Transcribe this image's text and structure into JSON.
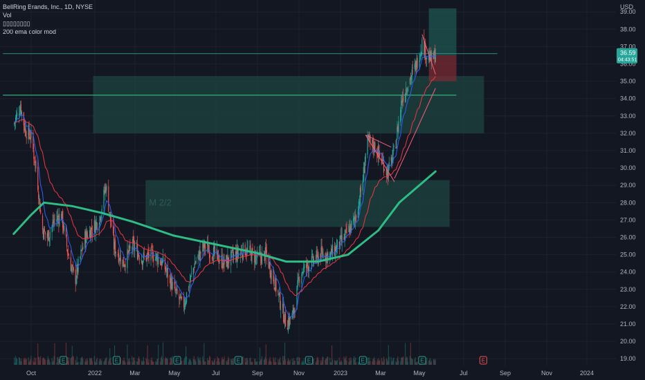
{
  "chart_data": {
    "type": "candlestick",
    "symbol": "BellRing Brands, Inc., 1D, NYSE",
    "currency": "USD",
    "indicators": [
      "Vol",
      "▯▯▯▯▯▯▯▯",
      "200 ema color mod"
    ],
    "last_price": "36.59",
    "countdown": "04:43:51",
    "price_axis": [
      "39.00",
      "38.00",
      "37.00",
      "36.00",
      "35.00",
      "34.00",
      "33.00",
      "32.00",
      "31.00",
      "30.00",
      "29.00",
      "28.00",
      "27.00",
      "26.00",
      "25.00",
      "24.00",
      "23.00",
      "22.00",
      "21.00",
      "20.00",
      "19.00"
    ],
    "ylim": [
      18.8,
      39.2
    ],
    "time_axis": [
      "Oct",
      "2022",
      "Mar",
      "May",
      "Jul",
      "Sep",
      "Nov",
      "2023",
      "Mar",
      "May",
      "Jul",
      "Sep",
      "Nov",
      "2024"
    ],
    "zone_label": "M 2/2",
    "close_points": [
      {
        "d": "2021-09-05",
        "v": 32.5
      },
      {
        "d": "2021-09-15",
        "v": 33.6
      },
      {
        "d": "2021-09-22",
        "v": 32.2
      },
      {
        "d": "2021-10-01",
        "v": 31.8
      },
      {
        "d": "2021-10-10",
        "v": 29.5
      },
      {
        "d": "2021-10-17",
        "v": 26.5
      },
      {
        "d": "2021-10-25",
        "v": 26.0
      },
      {
        "d": "2021-11-05",
        "v": 27.0
      },
      {
        "d": "2021-11-15",
        "v": 27.3
      },
      {
        "d": "2021-11-25",
        "v": 25.0
      },
      {
        "d": "2021-12-05",
        "v": 23.5
      },
      {
        "d": "2021-12-20",
        "v": 26.0
      },
      {
        "d": "2022-01-10",
        "v": 27.0
      },
      {
        "d": "2022-01-20",
        "v": 29.0
      },
      {
        "d": "2022-02-01",
        "v": 25.5
      },
      {
        "d": "2022-02-15",
        "v": 24.5
      },
      {
        "d": "2022-03-01",
        "v": 25.5
      },
      {
        "d": "2022-03-15",
        "v": 24.8
      },
      {
        "d": "2022-04-01",
        "v": 25.0
      },
      {
        "d": "2022-04-15",
        "v": 24.5
      },
      {
        "d": "2022-05-01",
        "v": 23.0
      },
      {
        "d": "2022-05-15",
        "v": 22.0
      },
      {
        "d": "2022-06-01",
        "v": 24.5
      },
      {
        "d": "2022-06-15",
        "v": 25.5
      },
      {
        "d": "2022-07-01",
        "v": 25.0
      },
      {
        "d": "2022-07-15",
        "v": 24.5
      },
      {
        "d": "2022-08-01",
        "v": 25.0
      },
      {
        "d": "2022-08-15",
        "v": 25.3
      },
      {
        "d": "2022-09-01",
        "v": 24.8
      },
      {
        "d": "2022-09-15",
        "v": 25.0
      },
      {
        "d": "2022-10-01",
        "v": 23.0
      },
      {
        "d": "2022-10-15",
        "v": 21.0
      },
      {
        "d": "2022-10-25",
        "v": 21.5
      },
      {
        "d": "2022-11-05",
        "v": 24.0
      },
      {
        "d": "2022-11-20",
        "v": 24.5
      },
      {
        "d": "2022-12-05",
        "v": 25.0
      },
      {
        "d": "2022-12-20",
        "v": 25.0
      },
      {
        "d": "2023-01-10",
        "v": 26.0
      },
      {
        "d": "2023-01-25",
        "v": 27.0
      },
      {
        "d": "2023-02-05",
        "v": 29.0
      },
      {
        "d": "2023-02-12",
        "v": 31.5
      },
      {
        "d": "2023-02-25",
        "v": 31.2
      },
      {
        "d": "2023-03-05",
        "v": 30.5
      },
      {
        "d": "2023-03-15",
        "v": 29.7
      },
      {
        "d": "2023-03-25",
        "v": 31.0
      },
      {
        "d": "2023-04-05",
        "v": 34.0
      },
      {
        "d": "2023-04-15",
        "v": 35.0
      },
      {
        "d": "2023-04-25",
        "v": 35.8
      },
      {
        "d": "2023-05-05",
        "v": 37.2
      },
      {
        "d": "2023-05-12",
        "v": 36.5
      },
      {
        "d": "2023-05-20",
        "v": 36.2
      },
      {
        "d": "2023-05-25",
        "v": 36.59
      }
    ],
    "ema_200": [
      {
        "d": "2021-09-05",
        "v": 26.2
      },
      {
        "d": "2021-10-01",
        "v": 27.3
      },
      {
        "d": "2021-10-20",
        "v": 28.0
      },
      {
        "d": "2021-12-01",
        "v": 27.8
      },
      {
        "d": "2022-01-15",
        "v": 27.4
      },
      {
        "d": "2022-03-01",
        "v": 26.9
      },
      {
        "d": "2022-05-01",
        "v": 26.1
      },
      {
        "d": "2022-07-01",
        "v": 25.6
      },
      {
        "d": "2022-09-01",
        "v": 25.1
      },
      {
        "d": "2022-10-15",
        "v": 24.6
      },
      {
        "d": "2022-12-01",
        "v": 24.6
      },
      {
        "d": "2023-01-15",
        "v": 25.0
      },
      {
        "d": "2023-03-01",
        "v": 26.4
      },
      {
        "d": "2023-04-01",
        "v": 28.0
      },
      {
        "d": "2023-05-25",
        "v": 29.8
      }
    ],
    "zones": [
      {
        "name": "upper-supply-zone",
        "x0": "2022-01-01",
        "x1": "2023-08-05",
        "y0": 32.0,
        "y1": 35.3
      },
      {
        "name": "lower-demand-zone",
        "x0": "2022-03-20",
        "x1": "2023-06-15",
        "y0": 26.6,
        "y1": 29.3
      }
    ],
    "horizontal_lines": [
      {
        "name": "resistance-line",
        "y": 34.2,
        "x0": "2021-08-20",
        "x1": "2023-06-25",
        "color": "#2ebd85"
      },
      {
        "name": "last-price-line",
        "y": 36.59,
        "x0": "2021-08-20",
        "x1": "2023-08-25",
        "color": "#2a9d8f"
      }
    ],
    "position": {
      "x0": "2023-05-15",
      "x1": "2023-06-25",
      "entry": 36.5,
      "target": 39.2,
      "stop": 35.0
    },
    "earnings_markers": [
      "2021-11-18",
      "2022-02-05",
      "2022-05-06",
      "2022-08-05",
      "2022-11-18",
      "2023-02-06",
      "2023-05-05",
      "2023-08-04"
    ]
  },
  "colors": {
    "background": "#131722",
    "up": "#26a69a",
    "down": "#ef5350",
    "ema_fast": "#2962ff",
    "ema_slow": "#f23645",
    "ema_200": "#2ebd85",
    "zone": "#1e4a45",
    "grid": "#1e222d"
  }
}
